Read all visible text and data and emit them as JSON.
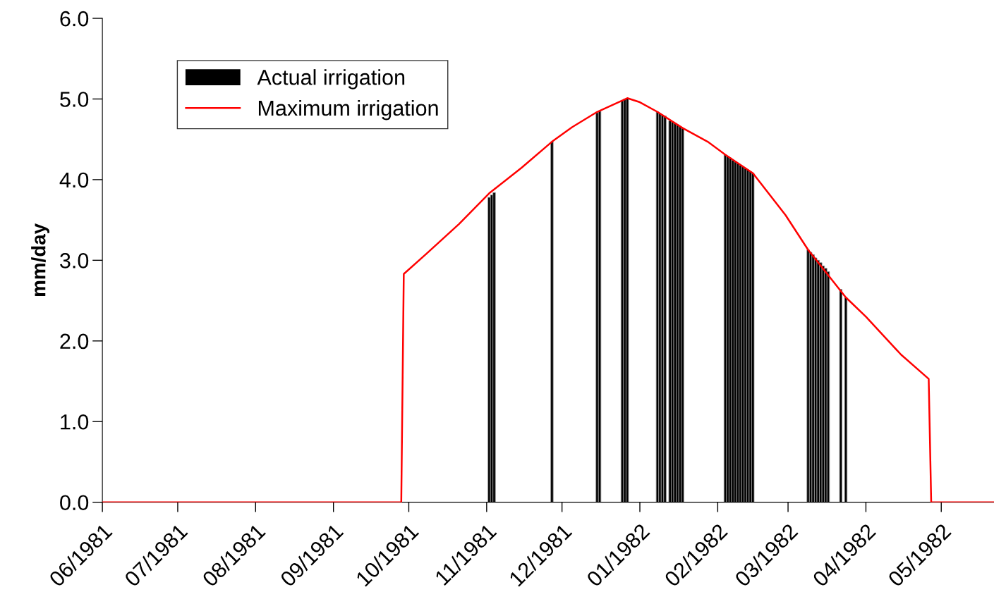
{
  "chart_data": {
    "type": "bar",
    "ylabel": "mm/day",
    "xlim": [
      "1981-06-01",
      "1982-05-22"
    ],
    "ylim": [
      0,
      6
    ],
    "xticks": [
      {
        "value": "1981-06-01",
        "label": "06/1981"
      },
      {
        "value": "1981-07-01",
        "label": "07/1981"
      },
      {
        "value": "1981-08-01",
        "label": "08/1981"
      },
      {
        "value": "1981-09-01",
        "label": "09/1981"
      },
      {
        "value": "1981-10-01",
        "label": "10/1981"
      },
      {
        "value": "1981-11-01",
        "label": "11/1981"
      },
      {
        "value": "1981-12-01",
        "label": "12/1981"
      },
      {
        "value": "1982-01-01",
        "label": "01/1982"
      },
      {
        "value": "1982-02-01",
        "label": "02/1982"
      },
      {
        "value": "1982-03-01",
        "label": "03/1982"
      },
      {
        "value": "1982-04-01",
        "label": "04/1982"
      },
      {
        "value": "1982-05-01",
        "label": "05/1982"
      }
    ],
    "yticks": [
      {
        "value": 0,
        "label": "0.0"
      },
      {
        "value": 1,
        "label": "1.0"
      },
      {
        "value": 2,
        "label": "2.0"
      },
      {
        "value": 3,
        "label": "3.0"
      },
      {
        "value": 4,
        "label": "4.0"
      },
      {
        "value": 5,
        "label": "5.0"
      },
      {
        "value": 6,
        "label": "6.0"
      }
    ],
    "grid": false,
    "legend": "top left",
    "series": [
      {
        "name": "Actual irrigation",
        "color": "#000000",
        "x": [
          "1981-11-02",
          "1981-11-03",
          "1981-11-04",
          "1981-11-27",
          "1981-12-15",
          "1981-12-16",
          "1981-12-25",
          "1981-12-26",
          "1981-12-27",
          "1982-01-08",
          "1982-01-09",
          "1982-01-10",
          "1982-01-11",
          "1982-01-13",
          "1982-01-14",
          "1982-01-15",
          "1982-01-16",
          "1982-01-17",
          "1982-01-18",
          "1982-02-04",
          "1982-02-05",
          "1982-02-06",
          "1982-02-07",
          "1982-02-08",
          "1982-02-09",
          "1982-02-10",
          "1982-02-11",
          "1982-02-12",
          "1982-02-13",
          "1982-02-14",
          "1982-02-15",
          "1982-03-09",
          "1982-03-10",
          "1982-03-11",
          "1982-03-12",
          "1982-03-13",
          "1982-03-14",
          "1982-03-15",
          "1982-03-16",
          "1982-03-17",
          "1982-03-22",
          "1982-03-24"
        ],
        "values": [
          3.78,
          3.81,
          3.84,
          4.47,
          4.83,
          4.85,
          4.98,
          5.0,
          5.01,
          4.84,
          4.82,
          4.8,
          4.79,
          4.73,
          4.72,
          4.7,
          4.68,
          4.66,
          4.64,
          4.31,
          4.29,
          4.27,
          4.24,
          4.22,
          4.2,
          4.18,
          4.16,
          4.14,
          4.12,
          4.1,
          4.08,
          3.13,
          3.1,
          3.07,
          3.03,
          3.0,
          2.97,
          2.93,
          2.9,
          2.86,
          2.64,
          2.54
        ]
      },
      {
        "name": "Maximum irrigation",
        "type": "line",
        "color": "#ff0000",
        "x": [
          "1981-06-01",
          "1981-09-28",
          "1981-09-29",
          "1981-10-08",
          "1981-10-21",
          "1981-11-02",
          "1981-11-15",
          "1981-11-27",
          "1981-12-05",
          "1981-12-15",
          "1981-12-27",
          "1982-01-01",
          "1982-01-08",
          "1982-01-18",
          "1982-01-28",
          "1982-02-04",
          "1982-02-15",
          "1982-02-28",
          "1982-03-09",
          "1982-03-24",
          "1982-04-01",
          "1982-04-15",
          "1982-04-26",
          "1982-04-27",
          "1982-05-22"
        ],
        "values": [
          0,
          0,
          2.83,
          3.08,
          3.45,
          3.83,
          4.15,
          4.47,
          4.65,
          4.84,
          5.01,
          4.96,
          4.84,
          4.64,
          4.47,
          4.31,
          4.08,
          3.56,
          3.13,
          2.54,
          2.3,
          1.83,
          1.53,
          0,
          0
        ]
      }
    ]
  }
}
